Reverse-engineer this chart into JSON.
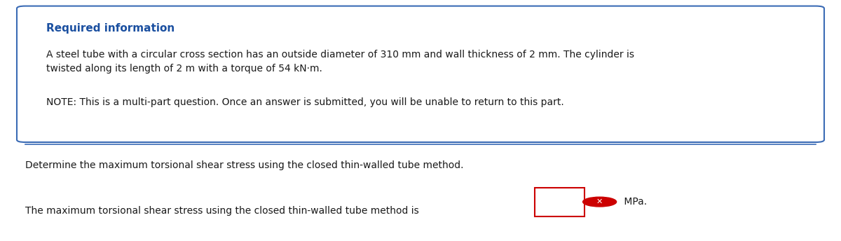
{
  "background_color": "#ffffff",
  "box_bg_color": "#ffffff",
  "box_border_color": "#3a6bb5",
  "title_text": "Required information",
  "title_color": "#1a4fa0",
  "body_text_1": "A steel tube with a circular cross section has an outside diameter of 310 mm and wall thickness of 2 mm. The cylinder is\ntwisted along its length of 2 m with a torque of 54 kN·m.",
  "body_text_2": "NOTE: This is a multi-part question. Once an answer is submitted, you will be unable to return to this part.",
  "question_text": "Determine the maximum torsional shear stress using the closed thin-walled tube method.",
  "answer_text_before": "The maximum torsional shear stress using the closed thin-walled tube method is",
  "answer_text_after": " MPa.",
  "text_color": "#1a1a1a",
  "font_size_title": 11,
  "font_size_body": 10,
  "font_size_question": 10,
  "input_box_color": "#ffffff",
  "input_box_border": "#cc0000",
  "icon_color": "#cc0000",
  "divider_color": "#3a6bb5"
}
